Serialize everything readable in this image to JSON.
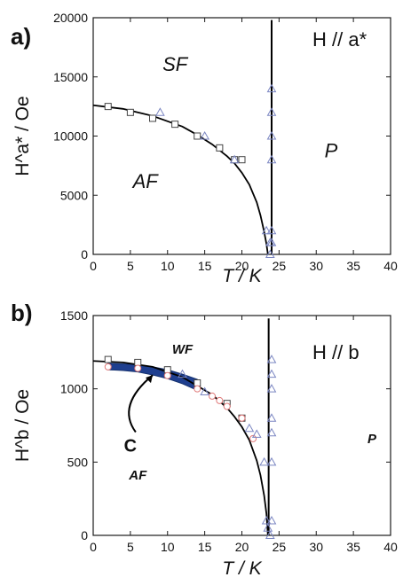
{
  "chart_data": [
    {
      "type": "scatter",
      "panel_label": "a)",
      "title": "",
      "field_label": "H // a*",
      "xlabel": "T / K",
      "ylabel": "H^a* / Oe",
      "xlim": [
        0,
        40
      ],
      "ylim": [
        0,
        20000
      ],
      "xticks": [
        0,
        5,
        10,
        15,
        20,
        25,
        30,
        35,
        40
      ],
      "yticks": [
        0,
        5000,
        10000,
        15000,
        20000
      ],
      "grid": false,
      "regions": [
        {
          "label": "SF",
          "x": 11,
          "y": 15500
        },
        {
          "label": "AF",
          "x": 7,
          "y": 5600
        },
        {
          "label": "P",
          "x": 32,
          "y": 8200
        }
      ],
      "series": [
        {
          "marker": "square",
          "x": [
            2,
            5,
            8,
            11,
            14,
            17,
            19,
            20
          ],
          "y": [
            12500,
            12000,
            11500,
            11000,
            10000,
            9000,
            8000,
            8000
          ]
        },
        {
          "marker": "triangle",
          "x": [
            9,
            15,
            19,
            23.3,
            23.8,
            23.8,
            24,
            24,
            24,
            24,
            24,
            24
          ],
          "y": [
            12000,
            10000,
            8000,
            2000,
            1000,
            0,
            14000,
            12000,
            10000,
            8000,
            2000,
            1000
          ]
        }
      ],
      "curves": [
        {
          "kind": "fit",
          "x": [
            0,
            4,
            8,
            12,
            14,
            16,
            18,
            19,
            20,
            21,
            22,
            22.5,
            23,
            23.3,
            23.5
          ],
          "y": [
            12600,
            12300,
            11700,
            10800,
            10100,
            9300,
            8300,
            7700,
            6900,
            5900,
            4400,
            3300,
            1900,
            900,
            0
          ]
        },
        {
          "kind": "boundary",
          "x": [
            24,
            24
          ],
          "y": [
            0,
            19800
          ]
        }
      ]
    },
    {
      "type": "scatter",
      "panel_label": "b)",
      "title": "",
      "field_label": "H // b",
      "xlabel": "T / K",
      "ylabel": "H^b / Oe",
      "xlim": [
        0,
        40
      ],
      "ylim": [
        0,
        1500
      ],
      "xticks": [
        0,
        5,
        10,
        15,
        20,
        25,
        30,
        35,
        40
      ],
      "yticks": [
        0,
        500,
        1000,
        1500
      ],
      "grid": false,
      "regions": [
        {
          "label": "WF",
          "x": 12,
          "y": 1240
        },
        {
          "label": "AF",
          "x": 6,
          "y": 380
        },
        {
          "label": "P",
          "x": 37.5,
          "y": 630
        }
      ],
      "annotation": {
        "label": "C",
        "x": 5,
        "y": 620,
        "arrow_to": [
          8,
          1130
        ]
      },
      "series": [
        {
          "marker": "square",
          "x": [
            2,
            6,
            10,
            14,
            18,
            20
          ],
          "y": [
            1200,
            1180,
            1130,
            1040,
            900,
            800
          ]
        },
        {
          "marker": "circle",
          "x": [
            2,
            6,
            10,
            14,
            16,
            17,
            18,
            20,
            21.5
          ],
          "y": [
            1150,
            1140,
            1090,
            1000,
            950,
            920,
            880,
            800,
            660
          ]
        },
        {
          "marker": "triangle",
          "x": [
            12,
            15,
            21,
            22,
            23,
            23.3,
            23.5,
            23.8,
            24,
            24,
            24,
            24,
            24,
            24,
            24
          ],
          "y": [
            1100,
            980,
            730,
            690,
            500,
            100,
            50,
            0,
            1200,
            1100,
            1000,
            800,
            700,
            500,
            100
          ]
        }
      ],
      "curves": [
        {
          "kind": "fit",
          "x": [
            0,
            4,
            8,
            12,
            16,
            18,
            19,
            20,
            21,
            22,
            22.5,
            23,
            23.3,
            23.5
          ],
          "y": [
            1190,
            1180,
            1150,
            1080,
            960,
            870,
            810,
            740,
            650,
            510,
            410,
            270,
            150,
            0
          ]
        },
        {
          "kind": "band",
          "x": [
            2,
            4,
            6,
            8,
            10,
            12,
            14
          ],
          "y_low": [
            1130,
            1125,
            1115,
            1095,
            1070,
            1035,
            990
          ],
          "y_high": [
            1175,
            1170,
            1165,
            1150,
            1130,
            1100,
            1065
          ]
        },
        {
          "kind": "boundary",
          "x": [
            23.6,
            23.6
          ],
          "y": [
            0,
            1480
          ]
        }
      ]
    }
  ]
}
